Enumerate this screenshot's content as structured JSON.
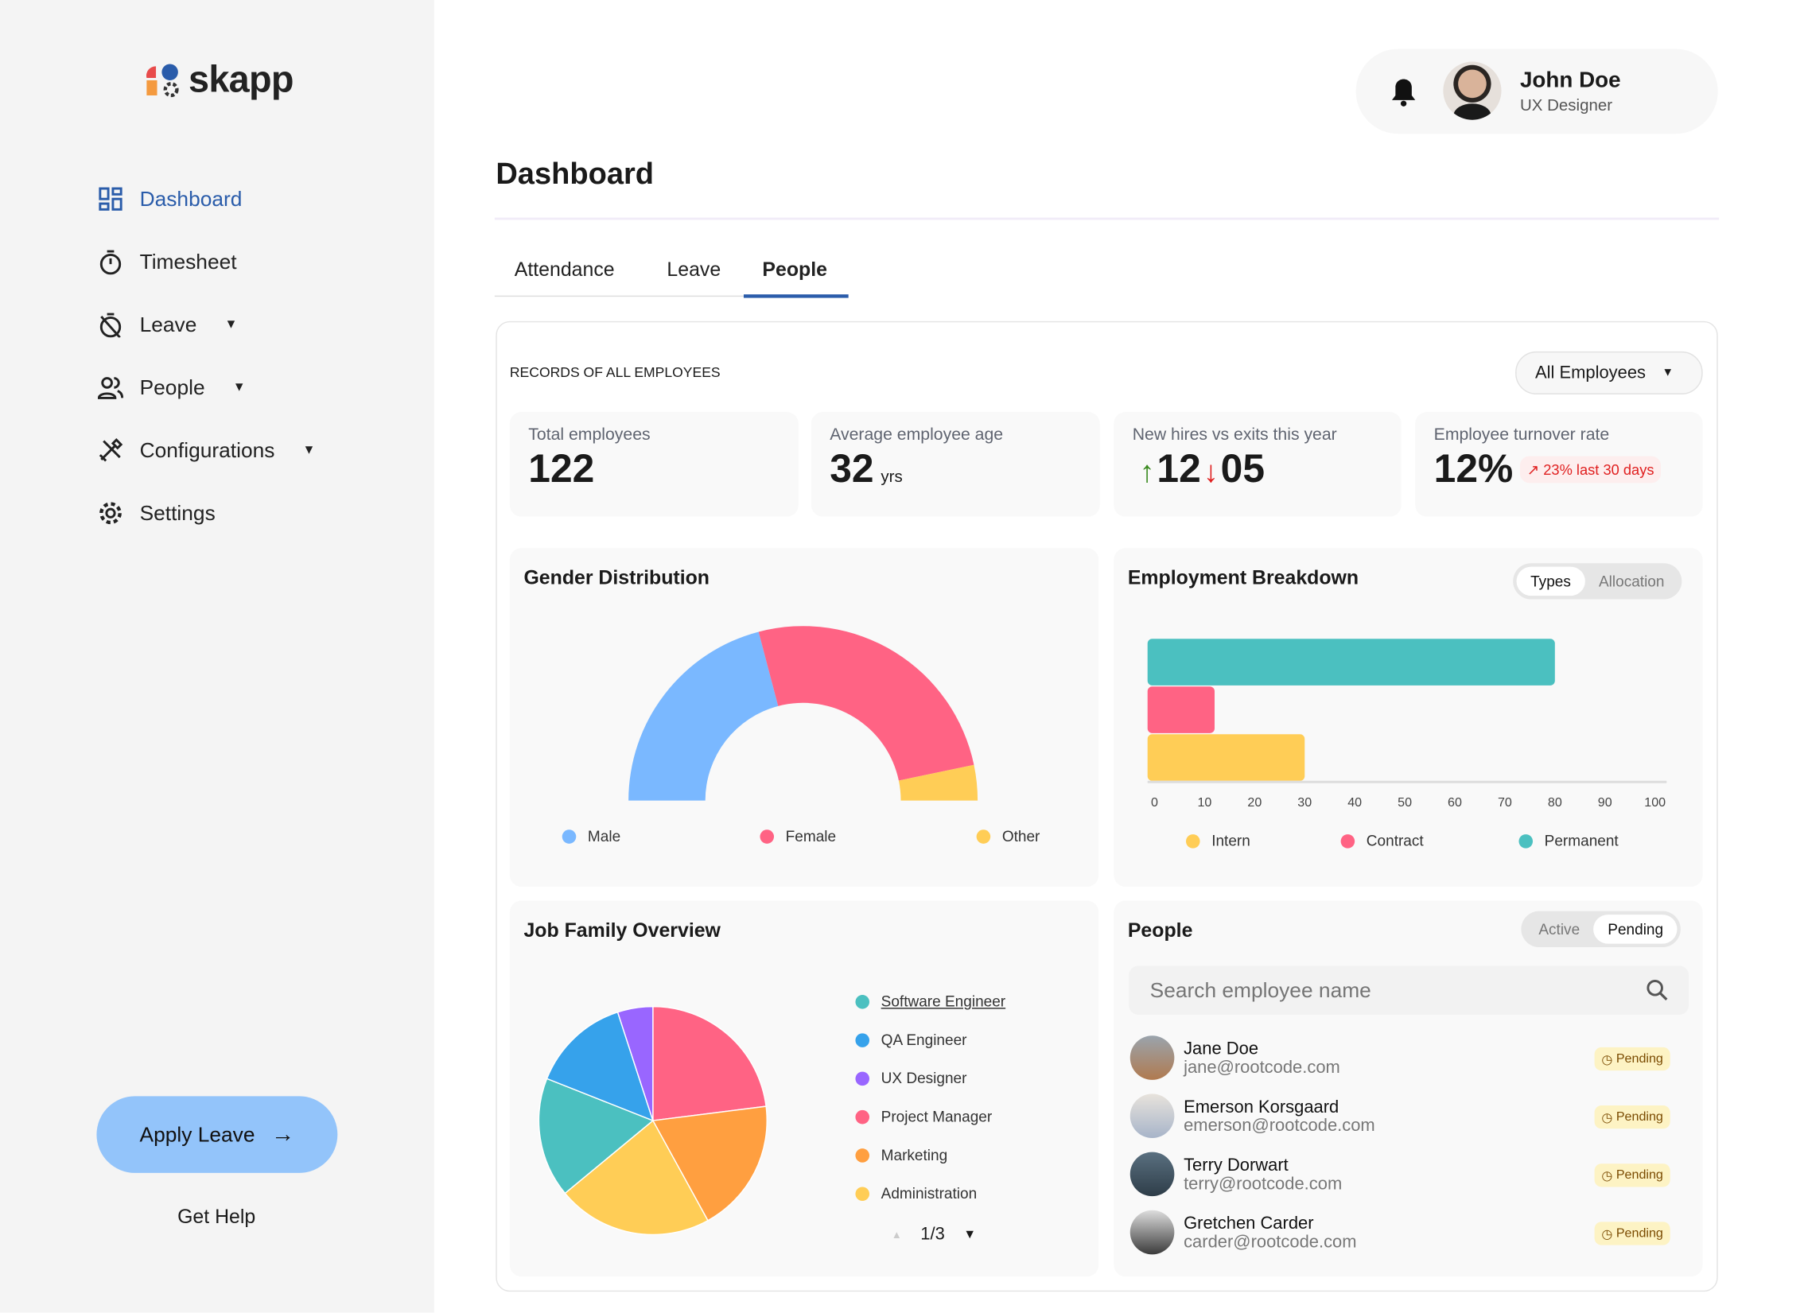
{
  "app": {
    "logo_text": "skapp"
  },
  "sidebar": {
    "items": [
      {
        "label": "Dashboard",
        "icon": "dashboard-icon",
        "active": true
      },
      {
        "label": "Timesheet",
        "icon": "stopwatch-icon"
      },
      {
        "label": "Leave",
        "icon": "leave-icon",
        "has_dropdown": true
      },
      {
        "label": "People",
        "icon": "people-icon",
        "has_dropdown": true
      },
      {
        "label": "Configurations",
        "icon": "tools-icon",
        "has_dropdown": true
      },
      {
        "label": "Settings",
        "icon": "gear-icon"
      }
    ],
    "apply_leave": "Apply Leave",
    "get_help": "Get Help"
  },
  "header": {
    "user_name": "John Doe",
    "user_role": "UX Designer"
  },
  "page": {
    "title": "Dashboard",
    "tabs": [
      "Attendance",
      "Leave",
      "People"
    ],
    "active_tab": "People"
  },
  "records": {
    "label": "RECORDS OF ALL EMPLOYEES",
    "filter": "All Employees"
  },
  "stats": {
    "total": {
      "label": "Total employees",
      "value": "122"
    },
    "age": {
      "label": "Average employee age",
      "value": "32",
      "unit": "yrs"
    },
    "hires": {
      "label": "New hires vs exits this year",
      "hires": "12",
      "exits": "05"
    },
    "turnover": {
      "label": "Employee turnover rate",
      "value": "12%",
      "trend": "23% last 30 days"
    }
  },
  "colors": {
    "accent": "#2a5caa",
    "male": "#7ab8ff",
    "female": "#ff6384",
    "other": "#ffcd56",
    "teal": "#4bc0c0",
    "orange": "#ff9f40",
    "blue": "#36a2eb",
    "purple": "#9966ff"
  },
  "chart_data": [
    {
      "type": "pie",
      "subtype": "half-donut",
      "title": "Gender Distribution",
      "categories": [
        "Male",
        "Female",
        "Other"
      ],
      "values": [
        51,
        63,
        8
      ],
      "colors": [
        "#7ab8ff",
        "#ff6384",
        "#ffcd56"
      ],
      "legend": "bottom"
    },
    {
      "type": "bar",
      "orientation": "horizontal",
      "title": "Employment Breakdown",
      "toggle": [
        "Types",
        "Allocation"
      ],
      "toggle_active": "Types",
      "categories": [
        "Permanent",
        "Contract",
        "Intern"
      ],
      "values": [
        80,
        12,
        30
      ],
      "colors": [
        "#4bc0c0",
        "#ff6384",
        "#ffcd56"
      ],
      "xlim": [
        0,
        100
      ],
      "xticks": [
        "0",
        "10",
        "20",
        "30",
        "40",
        "50",
        "60",
        "70",
        "80",
        "90",
        "100"
      ],
      "legend_order": [
        "Intern",
        "Contract",
        "Permanent"
      ],
      "legend": "bottom"
    },
    {
      "type": "pie",
      "title": "Job Family Overview",
      "categories": [
        "Project Manager",
        "Marketing",
        "Administration",
        "Software Engineer",
        "QA Engineer",
        "UX Designer"
      ],
      "values": [
        23,
        19,
        22,
        17,
        14,
        5
      ],
      "colors": [
        "#ff6384",
        "#ff9f40",
        "#ffcd56",
        "#4bc0c0",
        "#36a2eb",
        "#9966ff"
      ],
      "legend_order": [
        "Software Engineer",
        "QA Engineer",
        "UX Designer",
        "Project Manager",
        "Marketing",
        "Administration"
      ],
      "legend_colors": [
        "#4bc0c0",
        "#36a2eb",
        "#9966ff",
        "#ff6384",
        "#ff9f40",
        "#ffcd56"
      ],
      "page": "1/3",
      "legend": "right"
    }
  ],
  "people": {
    "title": "People",
    "toggle": [
      "Active",
      "Pending"
    ],
    "toggle_active": "Pending",
    "search_placeholder": "Search employee name",
    "rows": [
      {
        "name": "Jane Doe",
        "email": "jane@rootcode.com",
        "status": "Pending"
      },
      {
        "name": "Emerson Korsgaard",
        "email": "emerson@rootcode.com",
        "status": "Pending"
      },
      {
        "name": "Terry Dorwart",
        "email": "terry@rootcode.com",
        "status": "Pending"
      },
      {
        "name": "Gretchen Carder",
        "email": "carder@rootcode.com",
        "status": "Pending"
      }
    ]
  }
}
